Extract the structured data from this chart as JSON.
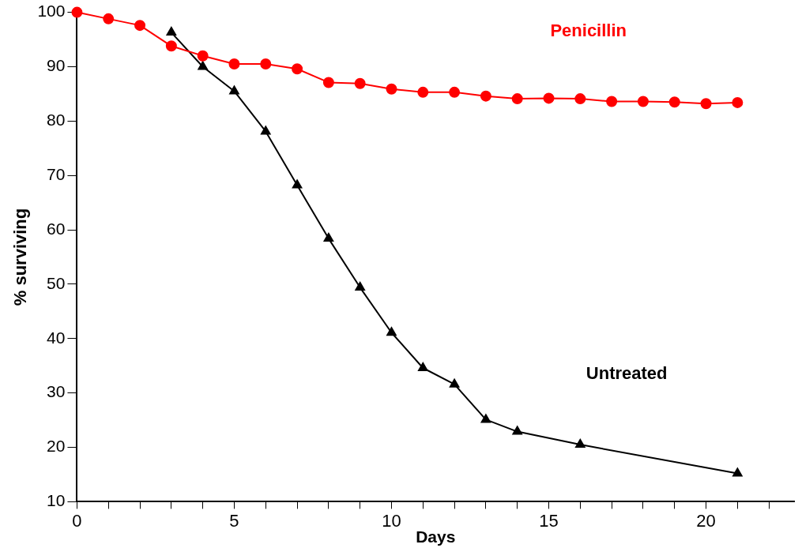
{
  "chart_data": {
    "type": "line",
    "xlabel": "Days",
    "ylabel": "% surviving",
    "xlim": [
      0,
      22.8
    ],
    "xticks": [
      0,
      {
        "value": 1,
        "label": null
      },
      {
        "value": 2,
        "label": null
      },
      {
        "value": 3,
        "label": null
      },
      {
        "value": 4,
        "label": null
      },
      5,
      {
        "value": 6,
        "label": null
      },
      {
        "value": 7,
        "label": null
      },
      {
        "value": 8,
        "label": null
      },
      {
        "value": 9,
        "label": null
      },
      10,
      {
        "value": 11,
        "label": null
      },
      {
        "value": 12,
        "label": null
      },
      {
        "value": 13,
        "label": null
      },
      {
        "value": 14,
        "label": null
      },
      15,
      {
        "value": 16,
        "label": null
      },
      {
        "value": 17,
        "label": null
      },
      {
        "value": 18,
        "label": null
      },
      {
        "value": 19,
        "label": null
      },
      20,
      {
        "value": 21,
        "label": null
      },
      {
        "value": 22,
        "label": null
      }
    ],
    "ylim": [
      10,
      100
    ],
    "yticks": [
      10,
      20,
      30,
      40,
      50,
      60,
      70,
      80,
      90,
      100
    ],
    "grid": false,
    "legend": false,
    "line_style": "solid",
    "series": [
      {
        "name": "Penicillin",
        "color": "#ff0000",
        "marker": "circle",
        "x": [
          0,
          1,
          2,
          3,
          4,
          5,
          6,
          7,
          8,
          9,
          10,
          11,
          12,
          13,
          14,
          15,
          16,
          17,
          18,
          19,
          20,
          21
        ],
        "values": [
          100,
          98.8,
          97.6,
          93.8,
          92.0,
          90.5,
          90.5,
          89.6,
          87.1,
          86.9,
          85.9,
          85.3,
          85.3,
          84.6,
          84.1,
          84.2,
          84.1,
          83.6,
          83.6,
          83.5,
          83.2,
          83.4
        ]
      },
      {
        "name": "Untreated",
        "color": "#000000",
        "marker": "triangle",
        "x": [
          3,
          4,
          5,
          6,
          7,
          8,
          9,
          10,
          11,
          12,
          13,
          14,
          16,
          21
        ],
        "values": [
          96.3,
          90,
          85.5,
          78.1,
          68.2,
          58.4,
          49.4,
          41.1,
          34.6,
          31.6,
          25.1,
          22.9,
          20.5,
          15.2
        ]
      }
    ]
  }
}
